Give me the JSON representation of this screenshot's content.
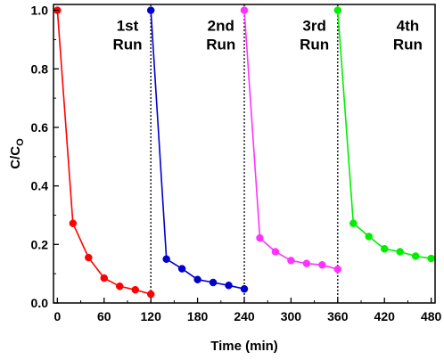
{
  "chart_data": {
    "type": "line",
    "xlabel": "Time (min)",
    "ylabel": "C/C",
    "ylabel_subscript": "O",
    "xlim": [
      -5,
      485
    ],
    "ylim": [
      0.0,
      1.02
    ],
    "x_ticks": [
      0,
      60,
      120,
      180,
      240,
      300,
      360,
      420,
      480
    ],
    "y_ticks": [
      0.0,
      0.2,
      0.4,
      0.6,
      0.8,
      1.0
    ],
    "y_tick_labels": [
      "0.0",
      "0.2",
      "0.4",
      "0.6",
      "0.8",
      "1.0"
    ],
    "grid": false,
    "legend": "none",
    "dividers_x": [
      120,
      240,
      360
    ],
    "runs": [
      {
        "label_line1": "1st",
        "label_line2": "Run",
        "label_x": 90,
        "label_y": 0.93
      },
      {
        "label_line1": "2nd",
        "label_line2": "Run",
        "label_x": 210,
        "label_y": 0.93
      },
      {
        "label_line1": "3rd",
        "label_line2": "Run",
        "label_x": 330,
        "label_y": 0.93
      },
      {
        "label_line1": "4th",
        "label_line2": "Run",
        "label_x": 450,
        "label_y": 0.93
      }
    ],
    "series": [
      {
        "color": "#ff0000",
        "x": [
          0,
          20,
          40,
          60,
          80,
          100,
          120
        ],
        "y": [
          1.0,
          0.272,
          0.155,
          0.085,
          0.057,
          0.045,
          0.03
        ]
      },
      {
        "color": "#0000cc",
        "x": [
          120,
          140,
          160,
          180,
          200,
          220,
          240
        ],
        "y": [
          1.0,
          0.15,
          0.117,
          0.08,
          0.07,
          0.06,
          0.048
        ]
      },
      {
        "color": "#ff33ff",
        "x": [
          240,
          260,
          280,
          300,
          320,
          340,
          360
        ],
        "y": [
          1.0,
          0.222,
          0.175,
          0.145,
          0.135,
          0.13,
          0.115
        ]
      },
      {
        "color": "#00ee00",
        "x": [
          360,
          380,
          400,
          420,
          440,
          460,
          480
        ],
        "y": [
          1.0,
          0.272,
          0.227,
          0.185,
          0.175,
          0.16,
          0.152
        ]
      }
    ]
  }
}
